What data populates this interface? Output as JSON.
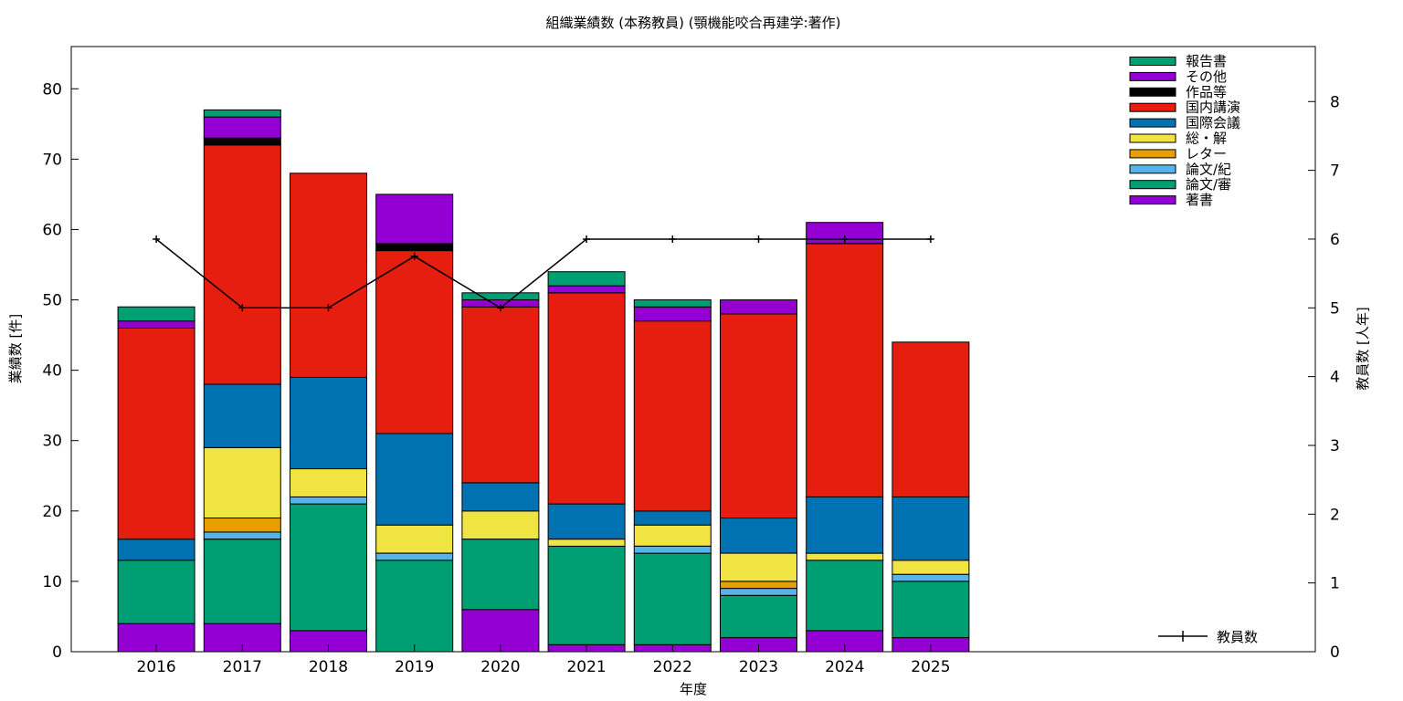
{
  "chart_data": {
    "type": "bar",
    "title": "組織業績数 (本務教員) (顎機能咬合再建学:著作)",
    "xlabel": "年度",
    "ylabel": "業績数 [件]",
    "y2label": "教員数 [人年]",
    "ylim": [
      0,
      86
    ],
    "y2lim": [
      0,
      8.8
    ],
    "yticks": [
      "0",
      "10",
      "20",
      "30",
      "40",
      "50",
      "60",
      "70",
      "80"
    ],
    "y2ticks": [
      "0",
      "1",
      "2",
      "3",
      "4",
      "5",
      "6",
      "7",
      "8"
    ],
    "categories": [
      "2016",
      "2017",
      "2018",
      "2019",
      "2020",
      "2021",
      "2022",
      "2023",
      "2024",
      "2025"
    ],
    "stacked": true,
    "legend_position": "top-right",
    "series": [
      {
        "name": "著書",
        "color": "#9400d3",
        "values": [
          4,
          4,
          3,
          0,
          6,
          1,
          1,
          2,
          3,
          2
        ]
      },
      {
        "name": "論文/審",
        "color": "#009e73",
        "values": [
          9,
          12,
          18,
          13,
          10,
          14,
          13,
          6,
          10,
          8
        ]
      },
      {
        "name": "論文/紀",
        "color": "#56b4e9",
        "values": [
          0,
          1,
          1,
          1,
          0,
          0,
          1,
          1,
          0,
          1
        ]
      },
      {
        "name": "レター",
        "color": "#e69f00",
        "values": [
          0,
          2,
          0,
          0,
          0,
          0,
          0,
          1,
          0,
          0
        ]
      },
      {
        "name": "総・解",
        "color": "#f0e442",
        "values": [
          0,
          10,
          4,
          4,
          4,
          1,
          3,
          4,
          1,
          2
        ]
      },
      {
        "name": "国際会議",
        "color": "#0072b2",
        "values": [
          3,
          9,
          13,
          13,
          4,
          5,
          2,
          5,
          8,
          9
        ]
      },
      {
        "name": "国内講演",
        "color": "#e51e10",
        "values": [
          30,
          34,
          29,
          26,
          25,
          30,
          27,
          29,
          36,
          22
        ]
      },
      {
        "name": "作品等",
        "color": "#000000",
        "values": [
          0,
          1,
          0,
          1,
          0,
          0,
          0,
          0,
          0,
          0
        ]
      },
      {
        "name": "その他",
        "color": "#9400d3",
        "values": [
          1,
          3,
          0,
          7,
          1,
          1,
          2,
          2,
          3,
          0
        ]
      },
      {
        "name": "報告書",
        "color": "#009e73",
        "values": [
          2,
          1,
          0,
          0,
          1,
          2,
          1,
          0,
          0,
          0
        ]
      }
    ],
    "line_series": {
      "name": "教員数",
      "color": "#000000",
      "axis": "right",
      "values": [
        6,
        5,
        5,
        5.75,
        5,
        6,
        6,
        6,
        6,
        6
      ]
    }
  }
}
